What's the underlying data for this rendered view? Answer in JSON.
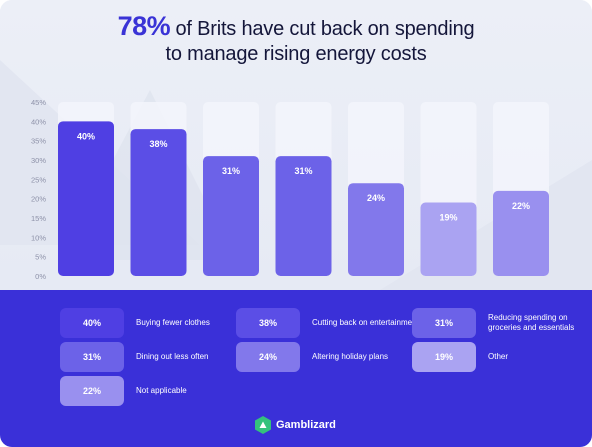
{
  "headline": {
    "highlight": "78%",
    "line1_rest": "of Brits have cut back on spending",
    "line2": "to manage rising energy costs"
  },
  "chart_data": {
    "type": "bar",
    "categories": [
      "Buying fewer clothes",
      "Cutting back on entertainment",
      "Reducing spending on groceries and essentials",
      "Dining out less often",
      "Altering holiday plans",
      "Other",
      "Not applicable"
    ],
    "values": [
      40,
      38,
      31,
      31,
      24,
      19,
      22
    ],
    "data_labels": [
      "40%",
      "38%",
      "31%",
      "31%",
      "24%",
      "19%",
      "22%"
    ],
    "y_ticks": [
      "0%",
      "5%",
      "10%",
      "15%",
      "20%",
      "25%",
      "30%",
      "35%",
      "40%",
      "45%"
    ],
    "ylim": [
      0,
      45
    ],
    "bar_colors": [
      "#4f3fe3",
      "#5b4ee6",
      "#6c62e8",
      "#6c62e8",
      "#8278eb",
      "#aaa3f2",
      "#9990ef"
    ],
    "legend": "below chart",
    "grid": false
  },
  "legend": {
    "items": [
      {
        "value": "40%",
        "label": "Buying fewer clothes",
        "color": "#4f3fe3"
      },
      {
        "value": "38%",
        "label": "Cutting back on entertainment",
        "color": "#5b4ee6"
      },
      {
        "value": "31%",
        "label": "Reducing spending on groceries and essentials",
        "color": "#6c62e8"
      },
      {
        "value": "31%",
        "label": "Dining out less often",
        "color": "#6c62e8"
      },
      {
        "value": "24%",
        "label": "Altering holiday plans",
        "color": "#8278eb"
      },
      {
        "value": "19%",
        "label": "Other",
        "color": "#aaa3f2"
      },
      {
        "value": "22%",
        "label": "Not applicable",
        "color": "#9990ef"
      }
    ]
  },
  "brand": {
    "name": "Gamblizard",
    "logo_icon": "gamblizard-logo-icon",
    "logo_color": "#34c27d"
  }
}
